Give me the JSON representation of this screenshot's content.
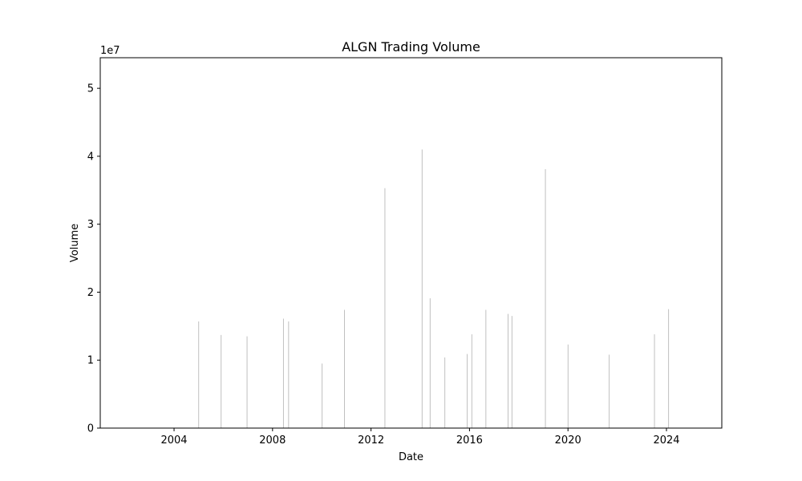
{
  "chart_data": {
    "type": "bar",
    "title": "ALGN Trading Volume",
    "xlabel": "Date",
    "ylabel": "Volume",
    "y_offset_label": "1e7",
    "x_range": [
      "2001-01-01",
      "2026-04-01"
    ],
    "ylim": [
      0,
      54500000
    ],
    "x_ticks": [
      {
        "date": "2004-01-01",
        "label": "2004"
      },
      {
        "date": "2008-01-01",
        "label": "2008"
      },
      {
        "date": "2012-01-01",
        "label": "2012"
      },
      {
        "date": "2016-01-01",
        "label": "2016"
      },
      {
        "date": "2020-01-01",
        "label": "2020"
      },
      {
        "date": "2024-01-01",
        "label": "2024"
      }
    ],
    "y_ticks": [
      {
        "value": 0,
        "label": "0"
      },
      {
        "value": 10000000,
        "label": "1"
      },
      {
        "value": 20000000,
        "label": "2"
      },
      {
        "value": 30000000,
        "label": "3"
      },
      {
        "value": 40000000,
        "label": "4"
      },
      {
        "value": 50000000,
        "label": "5"
      }
    ],
    "bar_color": "#c0c0c0",
    "grid": false,
    "series": [
      {
        "points": [
          {
            "date": "2004-12-31",
            "value": 15700000
          },
          {
            "date": "2005-11-29",
            "value": 13700000
          },
          {
            "date": "2006-12-19",
            "value": 13500000
          },
          {
            "date": "2008-06-11",
            "value": 16100000
          },
          {
            "date": "2008-08-26",
            "value": 15700000
          },
          {
            "date": "2010-01-05",
            "value": 9500000
          },
          {
            "date": "2010-12-03",
            "value": 17400000
          },
          {
            "date": "2012-07-25",
            "value": 35300000
          },
          {
            "date": "2014-01-28",
            "value": 41000000
          },
          {
            "date": "2014-05-27",
            "value": 19100000
          },
          {
            "date": "2014-12-31",
            "value": 10400000
          },
          {
            "date": "2015-11-27",
            "value": 10900000
          },
          {
            "date": "2016-02-05",
            "value": 13800000
          },
          {
            "date": "2016-08-31",
            "value": 17400000
          },
          {
            "date": "2017-07-26",
            "value": 16800000
          },
          {
            "date": "2017-09-22",
            "value": 16500000
          },
          {
            "date": "2019-01-31",
            "value": 38100000
          },
          {
            "date": "2020-01-02",
            "value": 12300000
          },
          {
            "date": "2021-09-03",
            "value": 10800000
          },
          {
            "date": "2023-07-07",
            "value": 13800000
          },
          {
            "date": "2024-02-01",
            "value": 17500000
          }
        ]
      }
    ]
  }
}
